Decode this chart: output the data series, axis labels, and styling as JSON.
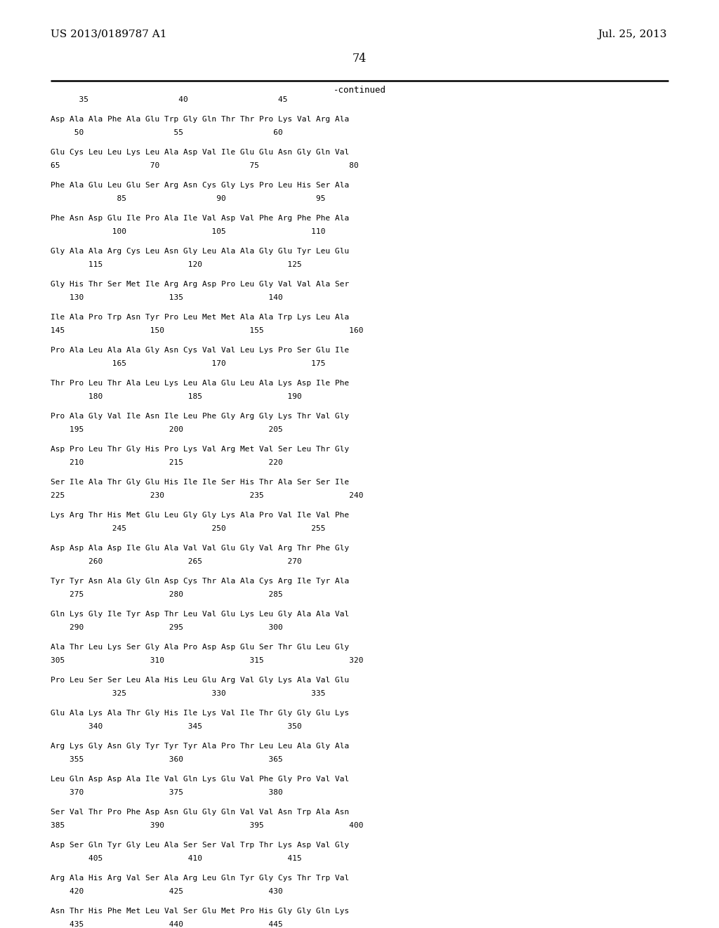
{
  "header_left": "US 2013/0189787 A1",
  "header_right": "Jul. 25, 2013",
  "page_number": "74",
  "continued_label": "-continued",
  "background_color": "#ffffff",
  "text_color": "#000000",
  "sequence_lines": [
    {
      "type": "ruler",
      "text": "      35                   40                   45"
    },
    {
      "type": "blank"
    },
    {
      "type": "seq",
      "text": "Asp Ala Ala Phe Ala Glu Trp Gly Gln Thr Thr Pro Lys Val Arg Ala"
    },
    {
      "type": "num",
      "text": "     50                   55                   60"
    },
    {
      "type": "blank"
    },
    {
      "type": "seq",
      "text": "Glu Cys Leu Leu Lys Leu Ala Asp Val Ile Glu Glu Asn Gly Gln Val"
    },
    {
      "type": "num",
      "text": "65                   70                   75                   80"
    },
    {
      "type": "blank"
    },
    {
      "type": "seq",
      "text": "Phe Ala Glu Leu Glu Ser Arg Asn Cys Gly Lys Pro Leu His Ser Ala"
    },
    {
      "type": "num",
      "text": "              85                   90                   95"
    },
    {
      "type": "blank"
    },
    {
      "type": "seq",
      "text": "Phe Asn Asp Glu Ile Pro Ala Ile Val Asp Val Phe Arg Phe Phe Ala"
    },
    {
      "type": "num",
      "text": "             100                  105                  110"
    },
    {
      "type": "blank"
    },
    {
      "type": "seq",
      "text": "Gly Ala Ala Arg Cys Leu Asn Gly Leu Ala Ala Gly Glu Tyr Leu Glu"
    },
    {
      "type": "num",
      "text": "        115                  120                  125"
    },
    {
      "type": "blank"
    },
    {
      "type": "seq",
      "text": "Gly His Thr Ser Met Ile Arg Arg Asp Pro Leu Gly Val Val Ala Ser"
    },
    {
      "type": "num",
      "text": "    130                  135                  140"
    },
    {
      "type": "blank"
    },
    {
      "type": "seq",
      "text": "Ile Ala Pro Trp Asn Tyr Pro Leu Met Met Ala Ala Trp Lys Leu Ala"
    },
    {
      "type": "num",
      "text": "145                  150                  155                  160"
    },
    {
      "type": "blank"
    },
    {
      "type": "seq",
      "text": "Pro Ala Leu Ala Ala Gly Asn Cys Val Val Leu Lys Pro Ser Glu Ile"
    },
    {
      "type": "num",
      "text": "             165                  170                  175"
    },
    {
      "type": "blank"
    },
    {
      "type": "seq",
      "text": "Thr Pro Leu Thr Ala Leu Lys Leu Ala Glu Leu Ala Lys Asp Ile Phe"
    },
    {
      "type": "num",
      "text": "        180                  185                  190"
    },
    {
      "type": "blank"
    },
    {
      "type": "seq",
      "text": "Pro Ala Gly Val Ile Asn Ile Leu Phe Gly Arg Gly Lys Thr Val Gly"
    },
    {
      "type": "num",
      "text": "    195                  200                  205"
    },
    {
      "type": "blank"
    },
    {
      "type": "seq",
      "text": "Asp Pro Leu Thr Gly His Pro Lys Val Arg Met Val Ser Leu Thr Gly"
    },
    {
      "type": "num",
      "text": "    210                  215                  220"
    },
    {
      "type": "blank"
    },
    {
      "type": "seq",
      "text": "Ser Ile Ala Thr Gly Glu His Ile Ile Ser His Thr Ala Ser Ser Ile"
    },
    {
      "type": "num",
      "text": "225                  230                  235                  240"
    },
    {
      "type": "blank"
    },
    {
      "type": "seq",
      "text": "Lys Arg Thr His Met Glu Leu Gly Gly Lys Ala Pro Val Ile Val Phe"
    },
    {
      "type": "num",
      "text": "             245                  250                  255"
    },
    {
      "type": "blank"
    },
    {
      "type": "seq",
      "text": "Asp Asp Ala Asp Ile Glu Ala Val Val Glu Gly Val Arg Thr Phe Gly"
    },
    {
      "type": "num",
      "text": "        260                  265                  270"
    },
    {
      "type": "blank"
    },
    {
      "type": "seq",
      "text": "Tyr Tyr Asn Ala Gly Gln Asp Cys Thr Ala Ala Cys Arg Ile Tyr Ala"
    },
    {
      "type": "num",
      "text": "    275                  280                  285"
    },
    {
      "type": "blank"
    },
    {
      "type": "seq",
      "text": "Gln Lys Gly Ile Tyr Asp Thr Leu Val Glu Lys Leu Gly Ala Ala Val"
    },
    {
      "type": "num",
      "text": "    290                  295                  300"
    },
    {
      "type": "blank"
    },
    {
      "type": "seq",
      "text": "Ala Thr Leu Lys Ser Gly Ala Pro Asp Asp Glu Ser Thr Glu Leu Gly"
    },
    {
      "type": "num",
      "text": "305                  310                  315                  320"
    },
    {
      "type": "blank"
    },
    {
      "type": "seq",
      "text": "Pro Leu Ser Ser Leu Ala His Leu Glu Arg Val Gly Lys Ala Val Glu"
    },
    {
      "type": "num",
      "text": "             325                  330                  335"
    },
    {
      "type": "blank"
    },
    {
      "type": "seq",
      "text": "Glu Ala Lys Ala Thr Gly His Ile Lys Val Ile Thr Gly Gly Glu Lys"
    },
    {
      "type": "num",
      "text": "        340                  345                  350"
    },
    {
      "type": "blank"
    },
    {
      "type": "seq",
      "text": "Arg Lys Gly Asn Gly Tyr Tyr Tyr Ala Pro Thr Leu Leu Ala Gly Ala"
    },
    {
      "type": "num",
      "text": "    355                  360                  365"
    },
    {
      "type": "blank"
    },
    {
      "type": "seq",
      "text": "Leu Gln Asp Asp Ala Ile Val Gln Lys Glu Val Phe Gly Pro Val Val"
    },
    {
      "type": "num",
      "text": "    370                  375                  380"
    },
    {
      "type": "blank"
    },
    {
      "type": "seq",
      "text": "Ser Val Thr Pro Phe Asp Asn Glu Gly Gln Val Val Asn Trp Ala Asn"
    },
    {
      "type": "num",
      "text": "385                  390                  395                  400"
    },
    {
      "type": "blank"
    },
    {
      "type": "seq",
      "text": "Asp Ser Gln Tyr Gly Leu Ala Ser Ser Val Trp Thr Lys Asp Val Gly"
    },
    {
      "type": "num",
      "text": "        405                  410                  415"
    },
    {
      "type": "blank"
    },
    {
      "type": "seq",
      "text": "Arg Ala His Arg Val Ser Ala Arg Leu Gln Tyr Gly Cys Thr Trp Val"
    },
    {
      "type": "num",
      "text": "    420                  425                  430"
    },
    {
      "type": "blank"
    },
    {
      "type": "seq",
      "text": "Asn Thr His Phe Met Leu Val Ser Glu Met Pro His Gly Gly Gln Lys"
    },
    {
      "type": "num",
      "text": "    435                  440                  445"
    }
  ]
}
